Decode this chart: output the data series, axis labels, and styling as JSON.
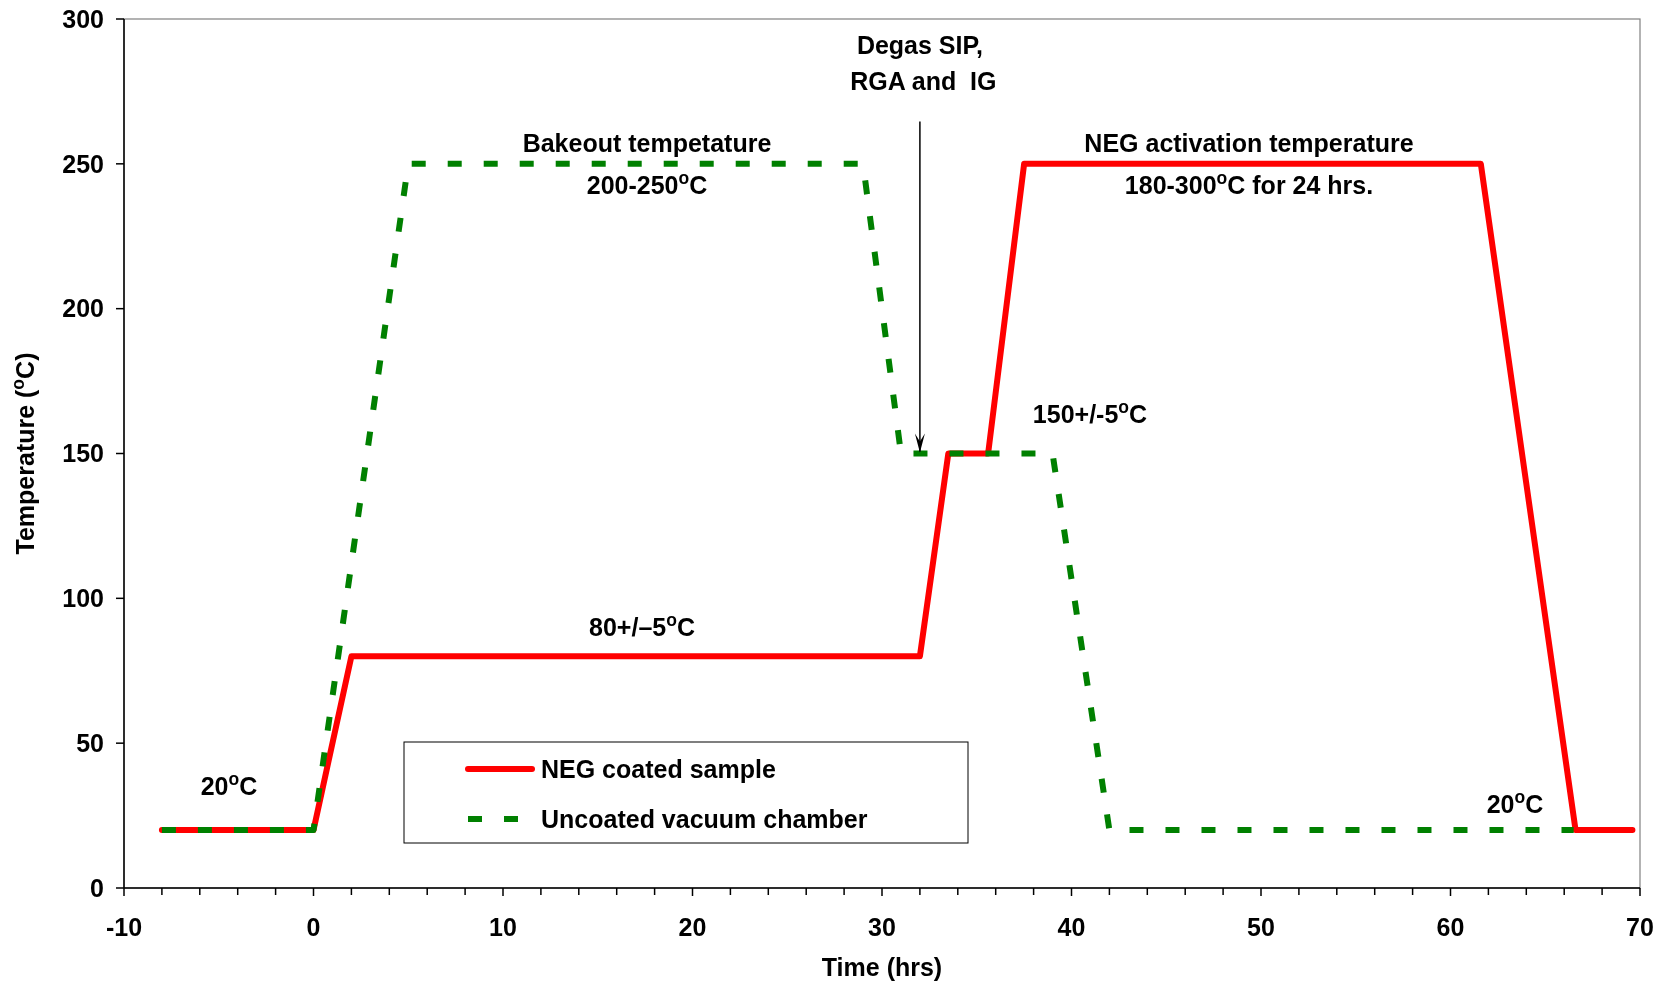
{
  "chart_data": {
    "type": "line",
    "xlabel": "Time (hrs)",
    "ylabel": "Temperature ($^{o}$C)",
    "xlim": [
      -10,
      70
    ],
    "xticks": [
      -10,
      {
        "value": -8,
        "label": null
      },
      {
        "value": -6,
        "label": null
      },
      {
        "value": -4,
        "label": null
      },
      {
        "value": -2,
        "label": null
      },
      0,
      {
        "value": 2,
        "label": null
      },
      {
        "value": 4,
        "label": null
      },
      {
        "value": 6,
        "label": null
      },
      {
        "value": 8,
        "label": null
      },
      10,
      {
        "value": 12,
        "label": null
      },
      {
        "value": 14,
        "label": null
      },
      {
        "value": 16,
        "label": null
      },
      {
        "value": 18,
        "label": null
      },
      20,
      {
        "value": 22,
        "label": null
      },
      {
        "value": 24,
        "label": null
      },
      {
        "value": 26,
        "label": null
      },
      {
        "value": 28,
        "label": null
      },
      30,
      {
        "value": 32,
        "label": null
      },
      {
        "value": 34,
        "label": null
      },
      {
        "value": 36,
        "label": null
      },
      {
        "value": 38,
        "label": null
      },
      40,
      {
        "value": 42,
        "label": null
      },
      {
        "value": 44,
        "label": null
      },
      {
        "value": 46,
        "label": null
      },
      {
        "value": 48,
        "label": null
      },
      50,
      {
        "value": 52,
        "label": null
      },
      {
        "value": 54,
        "label": null
      },
      {
        "value": 56,
        "label": null
      },
      {
        "value": 58,
        "label": null
      },
      60,
      {
        "value": 62,
        "label": null
      },
      {
        "value": 64,
        "label": null
      },
      {
        "value": 66,
        "label": null
      },
      {
        "value": 68,
        "label": null
      },
      70
    ],
    "ylim": [
      0,
      300
    ],
    "yticks": [
      0,
      50,
      100,
      150,
      200,
      250,
      300
    ],
    "grid": false,
    "legend": "bottom",
    "series": [
      {
        "name": "NEG coated sample",
        "color": "#ff0000",
        "line_style": "solid",
        "x": [
          -8,
          0,
          2,
          32,
          33.5,
          35.6,
          37.5,
          61.6,
          66.6,
          69.6
        ],
        "values": [
          20,
          20,
          80,
          80,
          150,
          150,
          250,
          250,
          20,
          20
        ]
      },
      {
        "name": "Uncoated vacuum chamber",
        "color": "#008000",
        "line_style": "dashed",
        "x": [
          -8,
          0,
          5,
          29,
          31,
          39,
          42,
          66.5
        ],
        "values": [
          20,
          20,
          250,
          250,
          150,
          150,
          20,
          20
        ]
      }
    ],
    "annotations": [
      "20$^{o}$C",
      "Bakeout tempetature\n200-250$^{o}$C",
      "80+/–5$^{o}$C",
      {
        "text": "Degas SIP,\n RGA and  IG",
        "x": 32,
        "y": 150
      },
      "NEG activation temperature\n180-300$^{o}$C for 24 hrs.",
      "150+/-5$^{o}$C",
      "20$^{o}$C"
    ]
  }
}
